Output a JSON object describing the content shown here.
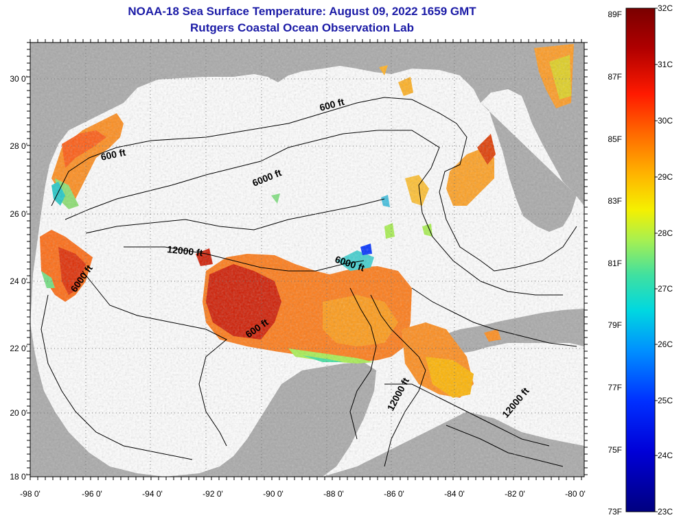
{
  "title": "NOAA-18 Sea Surface Temperature:  August 09, 2022 1659 GMT",
  "subtitle": "Rutgers Coastal Ocean Observation Lab",
  "map": {
    "lon_ticks": [
      "-98 0'",
      "-96 0'",
      "-94 0'",
      "-92 0'",
      "-90 0'",
      "-88 0'",
      "-86 0'",
      "-84 0'",
      "-82 0'",
      "-80 0'"
    ],
    "lat_ticks": [
      "30 0'",
      "28 0'",
      "26 0'",
      "24 0'",
      "22 0'",
      "20 0'",
      "18 0'"
    ],
    "contour_labels": [
      "600 ft",
      "600 ft",
      "6000 ft",
      "6000 ft",
      "6000 ft",
      "12000 ft",
      "600 ft",
      "12000 ft",
      "12000 ft"
    ],
    "colors": {
      "land": "#a9a9a9",
      "cloud": "#ffffff",
      "title": "#1a1aa6"
    }
  },
  "colorbar": {
    "fahrenheit": [
      "89F",
      "87F",
      "85F",
      "83F",
      "81F",
      "79F",
      "77F",
      "75F",
      "73F"
    ],
    "celsius": [
      "32C",
      "31C",
      "30C",
      "29C",
      "28C",
      "27C",
      "26C",
      "25C",
      "24C",
      "23C"
    ],
    "range_c": [
      23,
      32
    ]
  }
}
